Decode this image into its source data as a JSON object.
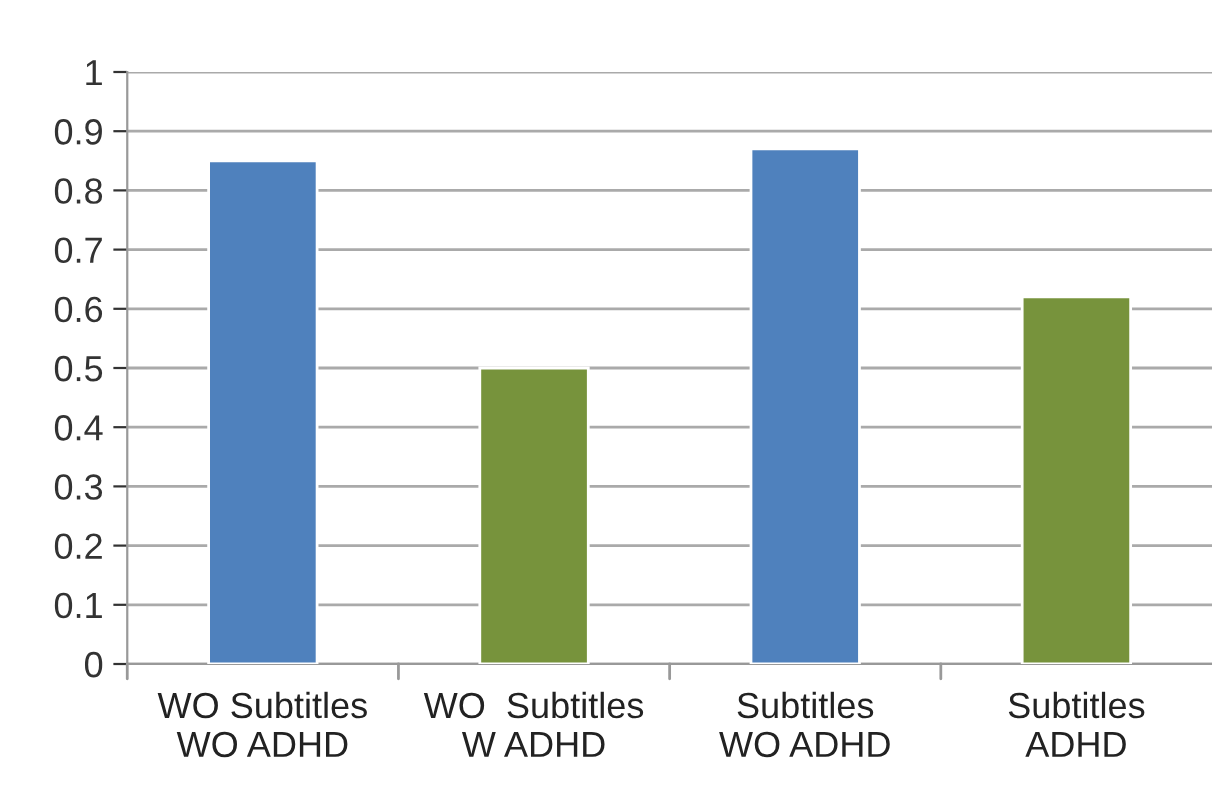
{
  "chart_data": {
    "type": "bar",
    "categories": [
      "WO Subtitles\nWO ADHD",
      "WO  Subtitles\nW ADHD",
      "Subtitles\nWO ADHD",
      "Subtitles\nADHD"
    ],
    "values": [
      0.85,
      0.5,
      0.87,
      0.62
    ],
    "colors": [
      "#4f81bd",
      "#77933c",
      "#4f81bd",
      "#77933c"
    ],
    "ylim": [
      0,
      1
    ],
    "yticks": [
      0,
      0.1,
      0.2,
      0.3,
      0.4,
      0.5,
      0.6,
      0.7,
      0.8,
      0.9,
      1
    ],
    "grid": "y"
  }
}
